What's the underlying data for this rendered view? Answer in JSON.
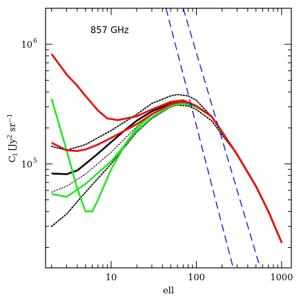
{
  "chart_data": {
    "type": "line",
    "annotation": "857 GHz",
    "xlabel": "ell",
    "ylabel": "C_l [Jy^2 sr^-1]",
    "ylabel_parts": {
      "main": "C",
      "sub": "l",
      "bracket_open": " [Jy",
      "sup1": "2",
      "middle": " sr",
      "sup2": "−1",
      "bracket_close": "]"
    },
    "x_scale": "log",
    "y_scale": "log",
    "xlim": [
      1.7,
      1300
    ],
    "ylim": [
      13500,
      2000000
    ],
    "x_ticks": [
      {
        "value": 10,
        "label": "10"
      },
      {
        "value": 100,
        "label": "100"
      },
      {
        "value": 1000,
        "label": "1000"
      }
    ],
    "y_ticks": [
      {
        "value": 100000,
        "base": "10",
        "exp": "5"
      },
      {
        "value": 1000000,
        "base": "10",
        "exp": "6"
      }
    ],
    "grid": false,
    "legend": "none",
    "colors": {
      "red": "#e8140f",
      "green": "#1ee61e",
      "black": "#000000",
      "blue": "#1616c8"
    },
    "series": [
      {
        "color": "#000000",
        "dash": "dotted",
        "width": 1.8,
        "points": [
          [
            2,
            140000
          ],
          [
            3,
            130000
          ],
          [
            5,
            145000
          ],
          [
            10,
            190000
          ],
          [
            20,
            260000
          ],
          [
            30,
            320000
          ],
          [
            50,
            370000
          ],
          [
            60,
            380000
          ],
          [
            80,
            370000
          ],
          [
            100,
            340000
          ],
          [
            150,
            250000
          ],
          [
            200,
            185000
          ],
          [
            300,
            120000
          ],
          [
            500,
            65000
          ],
          [
            700,
            40000
          ],
          [
            1000,
            22000
          ]
        ]
      },
      {
        "color": "#000000",
        "dash": "dotted",
        "width": 1.8,
        "points": [
          [
            2,
            30000
          ],
          [
            3,
            38000
          ],
          [
            5,
            58000
          ],
          [
            10,
            100000
          ],
          [
            20,
            185000
          ],
          [
            30,
            240000
          ],
          [
            50,
            300000
          ],
          [
            60,
            310000
          ],
          [
            80,
            305000
          ],
          [
            100,
            285000
          ],
          [
            150,
            230000
          ],
          [
            200,
            175000
          ],
          [
            300,
            120000
          ],
          [
            500,
            65000
          ],
          [
            700,
            40000
          ],
          [
            1000,
            22000
          ]
        ]
      },
      {
        "color": "#000000",
        "dash": "dotted",
        "width": 1.2,
        "points": [
          [
            2,
            58000
          ],
          [
            3,
            65000
          ],
          [
            5,
            82000
          ],
          [
            10,
            125000
          ],
          [
            20,
            205000
          ],
          [
            30,
            260000
          ],
          [
            50,
            315000
          ],
          [
            70,
            330000
          ],
          [
            100,
            305000
          ],
          [
            150,
            250000
          ],
          [
            200,
            185000
          ],
          [
            300,
            120000
          ],
          [
            500,
            65000
          ],
          [
            700,
            40000
          ],
          [
            1000,
            22000
          ]
        ]
      },
      {
        "color": "#000000",
        "dash": "solid",
        "width": 2.5,
        "points": [
          [
            2,
            83000
          ],
          [
            3,
            82000
          ],
          [
            4,
            88000
          ],
          [
            5,
            100000
          ],
          [
            7,
            122000
          ],
          [
            10,
            152000
          ],
          [
            15,
            195000
          ],
          [
            20,
            230000
          ],
          [
            30,
            275000
          ],
          [
            50,
            320000
          ],
          [
            70,
            330000
          ],
          [
            100,
            305000
          ],
          [
            150,
            250000
          ],
          [
            200,
            185000
          ],
          [
            300,
            120000
          ],
          [
            500,
            65000
          ],
          [
            700,
            40000
          ],
          [
            1000,
            22000
          ]
        ]
      },
      {
        "color": "#1ee61e",
        "dash": "solid",
        "width": 2.5,
        "points": [
          [
            2,
            350000
          ],
          [
            3,
            130000
          ],
          [
            4,
            62000
          ],
          [
            5,
            40000
          ],
          [
            6,
            40000
          ],
          [
            7,
            50000
          ],
          [
            10,
            90000
          ],
          [
            15,
            150000
          ],
          [
            20,
            200000
          ],
          [
            30,
            260000
          ],
          [
            50,
            310000
          ],
          [
            70,
            320000
          ],
          [
            100,
            300000
          ],
          [
            150,
            250000
          ],
          [
            200,
            185000
          ],
          [
            300,
            120000
          ],
          [
            500,
            65000
          ],
          [
            700,
            40000
          ],
          [
            1000,
            22000
          ]
        ]
      },
      {
        "color": "#1ee61e",
        "dash": "solid",
        "width": 2.5,
        "points": [
          [
            2,
            56000
          ],
          [
            3,
            53000
          ],
          [
            5,
            68000
          ],
          [
            10,
            105000
          ],
          [
            20,
            190000
          ],
          [
            30,
            245000
          ],
          [
            50,
            305000
          ],
          [
            70,
            320000
          ],
          [
            100,
            300000
          ],
          [
            150,
            250000
          ],
          [
            200,
            185000
          ],
          [
            300,
            120000
          ],
          [
            500,
            65000
          ],
          [
            700,
            40000
          ],
          [
            1000,
            22000
          ]
        ]
      },
      {
        "color": "#e8140f",
        "dash": "solid",
        "width": 2.8,
        "points": [
          [
            2,
            830000
          ],
          [
            3,
            560000
          ],
          [
            4,
            450000
          ],
          [
            5,
            370000
          ],
          [
            7,
            280000
          ],
          [
            9,
            240000
          ],
          [
            12,
            232000
          ],
          [
            20,
            250000
          ],
          [
            30,
            285000
          ],
          [
            50,
            330000
          ],
          [
            70,
            340000
          ],
          [
            100,
            305000
          ],
          [
            150,
            250000
          ],
          [
            200,
            185000
          ],
          [
            300,
            120000
          ],
          [
            500,
            65000
          ],
          [
            700,
            40000
          ],
          [
            1000,
            22000
          ]
        ]
      },
      {
        "color": "#e8140f",
        "dash": "solid",
        "width": 2.8,
        "points": [
          [
            2,
            150000
          ],
          [
            3,
            130000
          ],
          [
            4,
            128000
          ],
          [
            5,
            132000
          ],
          [
            7,
            145000
          ],
          [
            10,
            165000
          ],
          [
            20,
            215000
          ],
          [
            30,
            260000
          ],
          [
            50,
            315000
          ],
          [
            70,
            335000
          ],
          [
            100,
            305000
          ],
          [
            150,
            250000
          ],
          [
            200,
            185000
          ],
          [
            300,
            120000
          ],
          [
            500,
            65000
          ],
          [
            700,
            40000
          ],
          [
            1000,
            22000
          ]
        ]
      },
      {
        "color": "#1616c8",
        "dash": "dashed",
        "width": 1.4,
        "points": [
          [
            44,
            2000000
          ],
          [
            270,
            13500
          ]
        ]
      },
      {
        "color": "#1616c8",
        "dash": "dashed",
        "width": 1.4,
        "points": [
          [
            70,
            2000000
          ],
          [
            560,
            13500
          ]
        ]
      }
    ]
  }
}
